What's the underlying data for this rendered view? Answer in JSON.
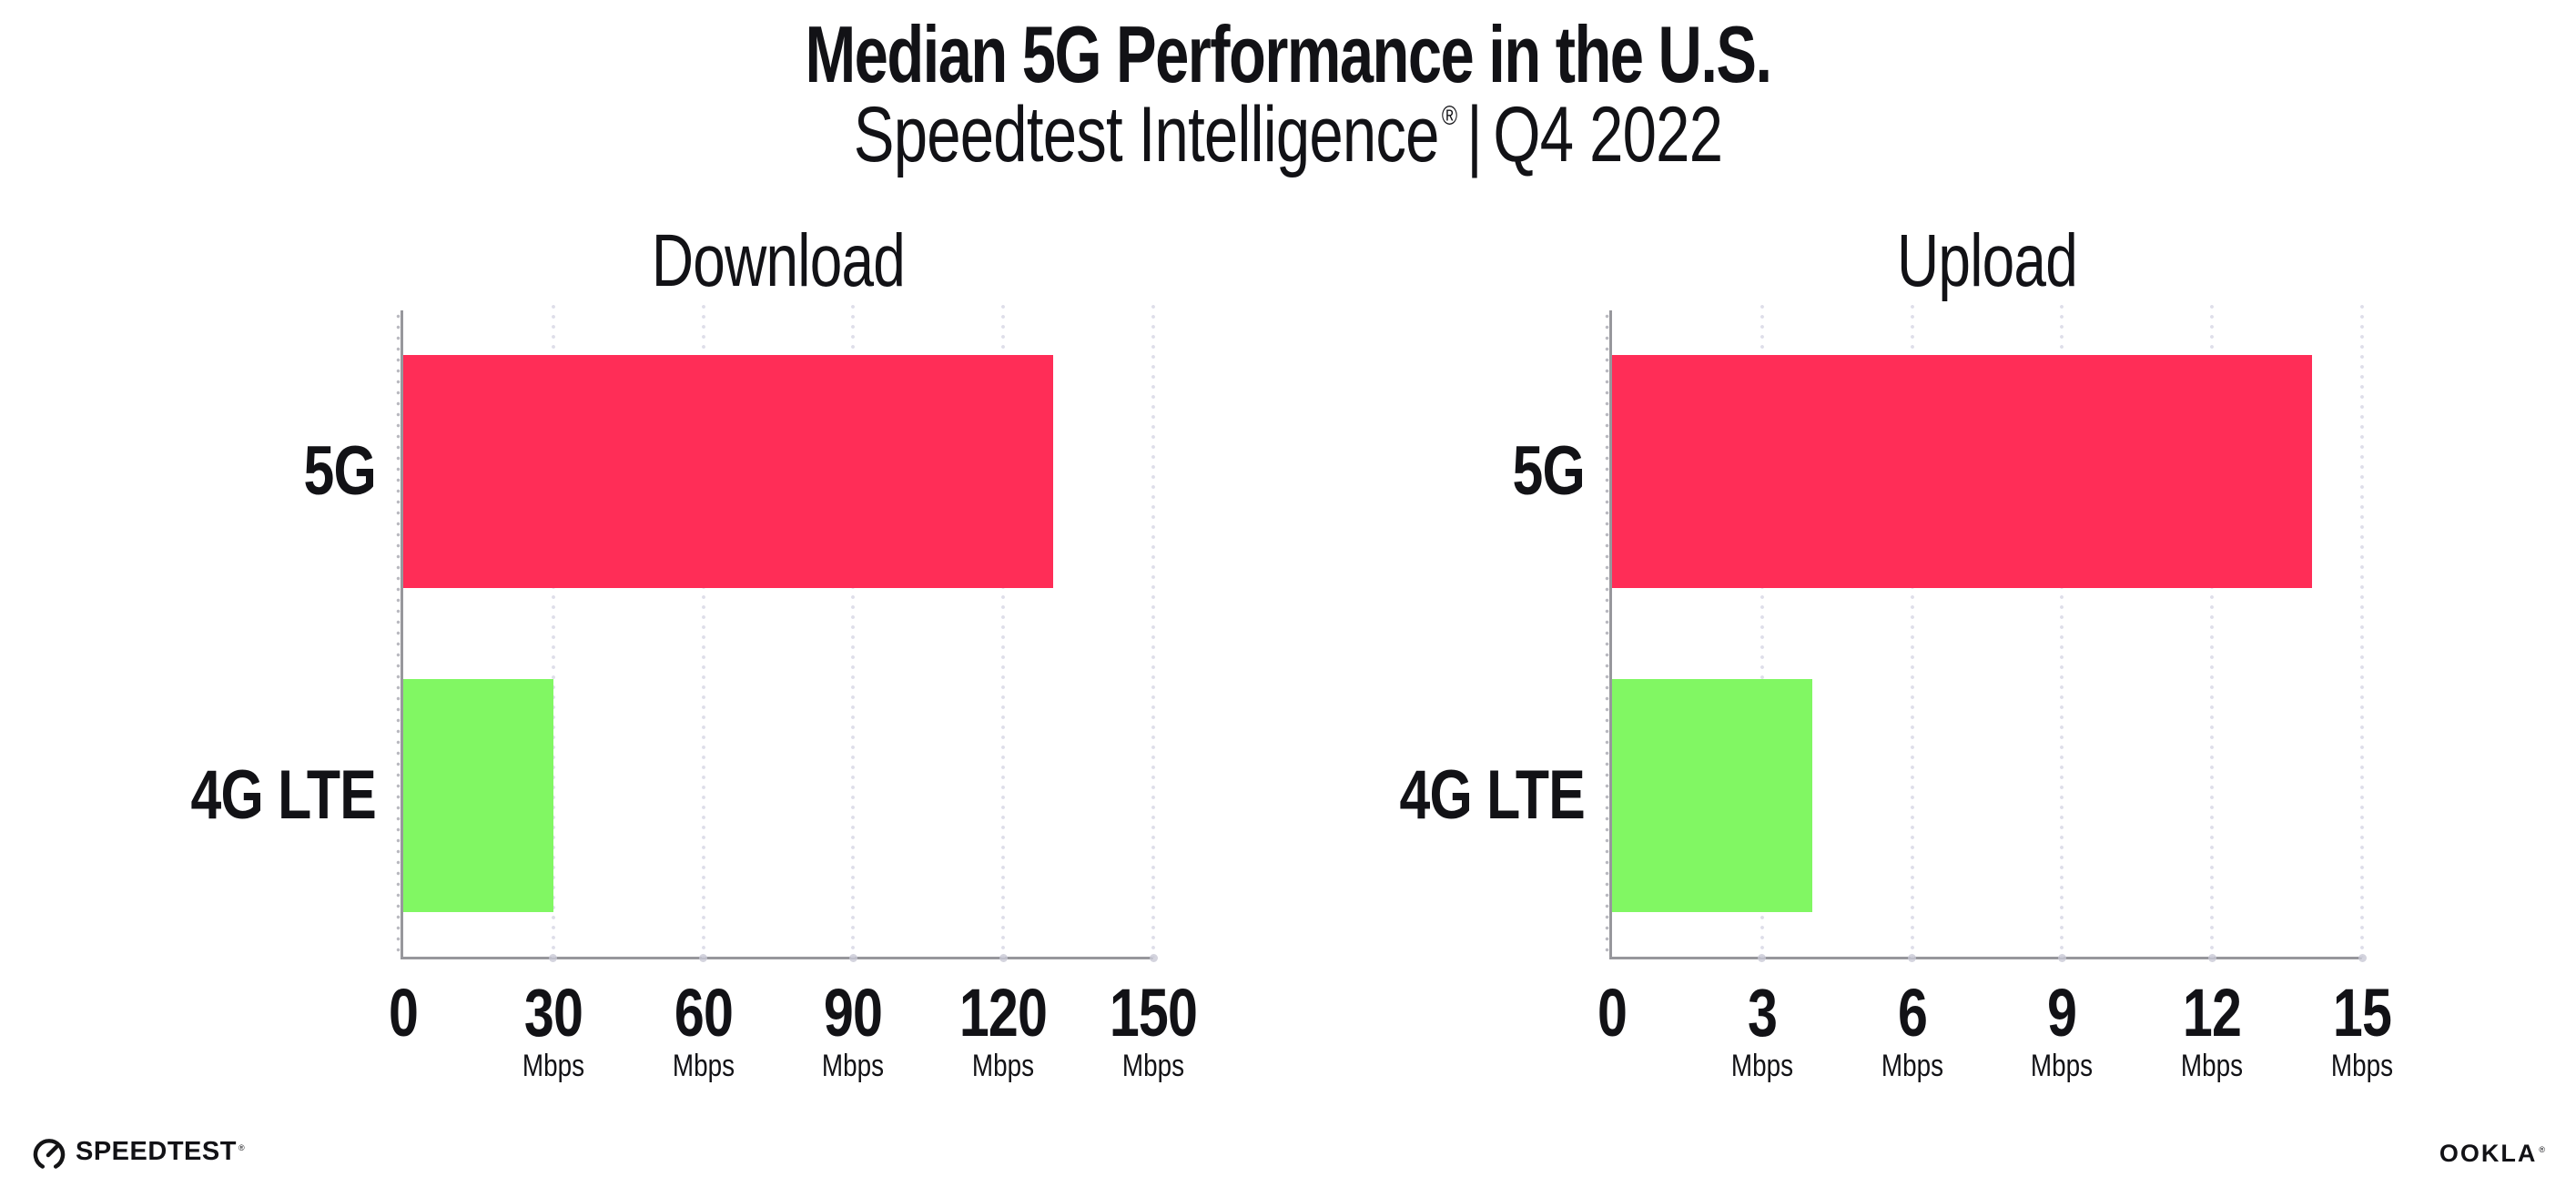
{
  "header": {
    "title": "Median 5G Performance in the U.S.",
    "subtitle_brand": "Speedtest Intelligence",
    "subtitle_reg": "®",
    "subtitle_separator": "|",
    "subtitle_period": "Q4 2022"
  },
  "colors": {
    "bar_5g": "#FF2D57",
    "bar_4g_lte": "#81F763",
    "axis": "#97979C",
    "gridline_dot": "#DEDEE9",
    "text": "#121216"
  },
  "chart_data": [
    {
      "type": "bar",
      "orientation": "horizontal",
      "title": "Download",
      "categories": [
        "5G",
        "4G LTE"
      ],
      "values": [
        130,
        30
      ],
      "unit": "Mbps",
      "xlim": [
        0,
        150
      ],
      "ticks": [
        0,
        30,
        60,
        90,
        120,
        150
      ],
      "tick_unit_label": "Mbps",
      "series_colors": [
        "#FF2D57",
        "#81F763"
      ],
      "grid": "dotted-vertical",
      "legend": "none"
    },
    {
      "type": "bar",
      "orientation": "horizontal",
      "title": "Upload",
      "categories": [
        "5G",
        "4G LTE"
      ],
      "values": [
        14,
        4
      ],
      "unit": "Mbps",
      "xlim": [
        0,
        15
      ],
      "ticks": [
        0,
        3,
        6,
        9,
        12,
        15
      ],
      "tick_unit_label": "Mbps",
      "series_colors": [
        "#FF2D57",
        "#81F763"
      ],
      "grid": "dotted-vertical",
      "legend": "none"
    }
  ],
  "footer": {
    "speedtest_text": "SPEEDTEST",
    "speedtest_mark": "®",
    "ookla_text": "OOKLA",
    "ookla_mark": "®"
  }
}
